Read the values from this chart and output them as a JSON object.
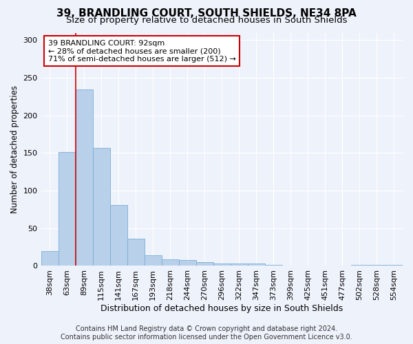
{
  "title": "39, BRANDLING COURT, SOUTH SHIELDS, NE34 8PA",
  "subtitle": "Size of property relative to detached houses in South Shields",
  "xlabel": "Distribution of detached houses by size in South Shields",
  "ylabel": "Number of detached properties",
  "footer_line1": "Contains HM Land Registry data © Crown copyright and database right 2024.",
  "footer_line2": "Contains public sector information licensed under the Open Government Licence v3.0.",
  "categories": [
    "38sqm",
    "63sqm",
    "89sqm",
    "115sqm",
    "141sqm",
    "167sqm",
    "193sqm",
    "218sqm",
    "244sqm",
    "270sqm",
    "296sqm",
    "322sqm",
    "347sqm",
    "373sqm",
    "399sqm",
    "425sqm",
    "451sqm",
    "477sqm",
    "502sqm",
    "528sqm",
    "554sqm"
  ],
  "values": [
    20,
    151,
    235,
    157,
    81,
    36,
    14,
    9,
    8,
    5,
    3,
    3,
    3,
    1,
    0,
    0,
    0,
    0,
    1,
    1,
    1
  ],
  "bar_color": "#b8d0ea",
  "bar_edge_color": "#7aaed6",
  "property_line_x": 1.5,
  "annotation_text": "39 BRANDLING COURT: 92sqm\n← 28% of detached houses are smaller (200)\n71% of semi-detached houses are larger (512) →",
  "annotation_box_color": "#ffffff",
  "annotation_box_edge_color": "#cc0000",
  "property_line_color": "#cc0000",
  "ylim": [
    0,
    310
  ],
  "yticks": [
    0,
    50,
    100,
    150,
    200,
    250,
    300
  ],
  "background_color": "#eef2fb",
  "grid_color": "#ffffff",
  "title_fontsize": 11,
  "subtitle_fontsize": 9.5,
  "xlabel_fontsize": 9,
  "ylabel_fontsize": 8.5,
  "tick_fontsize": 8,
  "annotation_fontsize": 8,
  "footer_fontsize": 7
}
